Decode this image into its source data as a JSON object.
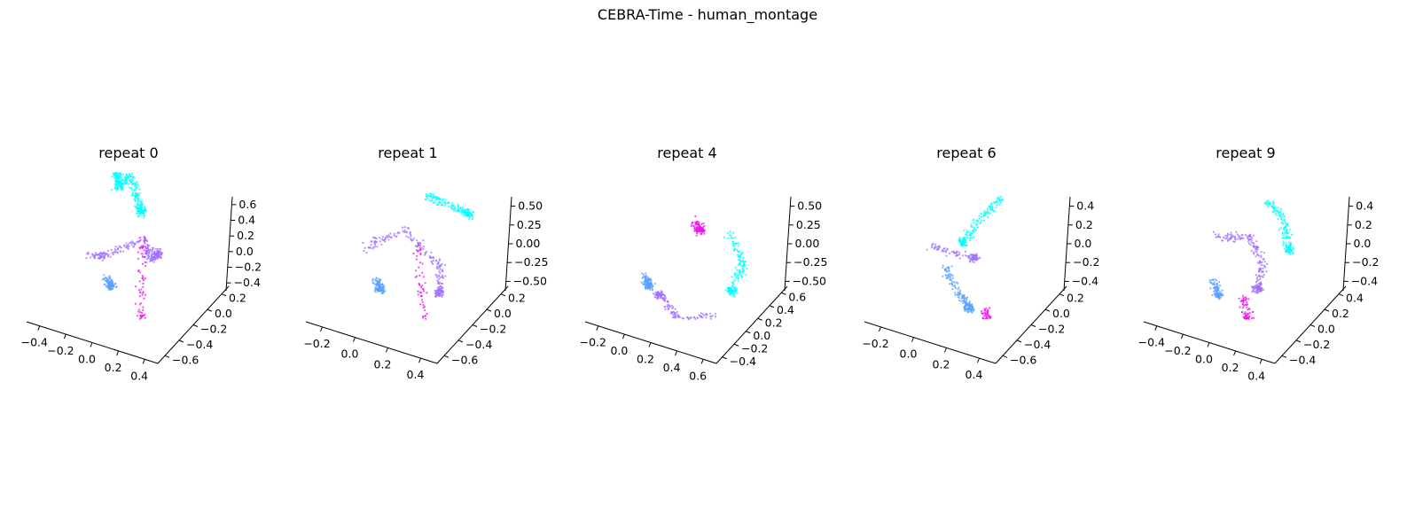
{
  "figure": {
    "title": "CEBRA-Time - human_montage"
  },
  "colors": {
    "cyan": "#00ffff",
    "blue": "#5aa0ff",
    "purple": "#a070ff",
    "magenta": "#f010f0",
    "axis": "#000000"
  },
  "chart_data": [
    {
      "type": "scatter",
      "title": "repeat 0",
      "x_ticks": [
        "−0.4",
        "−0.2",
        "0.0",
        "0.2",
        "0.4"
      ],
      "y_ticks": [
        "−0.6",
        "−0.4",
        "−0.2",
        "0.0",
        "0.2"
      ],
      "z_ticks": [
        "−0.4",
        "−0.2",
        "0.0",
        "0.2",
        "0.4",
        "0.6"
      ],
      "clusters": [
        {
          "color": "cyan",
          "points": [
            [
              -0.15,
              0.25,
              0.62
            ],
            [
              -0.12,
              0.28,
              0.55
            ],
            [
              -0.1,
              0.2,
              0.5
            ],
            [
              -0.05,
              0.3,
              0.58
            ],
            [
              0.05,
              0.2,
              0.45
            ],
            [
              0.1,
              0.15,
              0.35
            ]
          ]
        },
        {
          "color": "purple",
          "points": [
            [
              -0.25,
              0.05,
              -0.05
            ],
            [
              -0.1,
              0.0,
              0.0
            ],
            [
              0.15,
              0.1,
              0.15
            ],
            [
              0.2,
              0.05,
              0.0
            ],
            [
              0.25,
              0.1,
              0.05
            ]
          ]
        },
        {
          "color": "blue",
          "points": [
            [
              -0.05,
              -0.1,
              -0.15
            ],
            [
              0.0,
              -0.15,
              -0.2
            ]
          ]
        },
        {
          "color": "magenta",
          "points": [
            [
              0.15,
              0.05,
              0.15
            ],
            [
              0.2,
              -0.1,
              -0.4
            ],
            [
              0.3,
              -0.2,
              -0.55
            ]
          ]
        }
      ]
    },
    {
      "type": "scatter",
      "title": "repeat 1",
      "x_ticks": [
        "−0.2",
        "0.0",
        "0.2",
        "0.4"
      ],
      "y_ticks": [
        "−0.6",
        "−0.4",
        "−0.2",
        "0.0",
        "0.2"
      ],
      "z_ticks": [
        "−0.50",
        "−0.25",
        "0.00",
        "0.25",
        "0.50"
      ],
      "clusters": [
        {
          "color": "cyan",
          "points": [
            [
              0.1,
              0.25,
              0.45
            ],
            [
              0.25,
              0.3,
              0.4
            ],
            [
              0.4,
              0.3,
              0.35
            ]
          ]
        },
        {
          "color": "purple",
          "points": [
            [
              -0.3,
              0.1,
              0.0
            ],
            [
              0.0,
              0.1,
              0.2
            ],
            [
              0.3,
              0.0,
              0.0
            ],
            [
              0.35,
              -0.1,
              -0.2
            ]
          ]
        },
        {
          "color": "blue",
          "points": [
            [
              -0.15,
              -0.05,
              -0.2
            ],
            [
              -0.1,
              -0.1,
              -0.25
            ]
          ]
        },
        {
          "color": "magenta",
          "points": [
            [
              0.1,
              0.1,
              0.1
            ],
            [
              0.25,
              -0.15,
              -0.5
            ]
          ]
        }
      ]
    },
    {
      "type": "scatter",
      "title": "repeat 4",
      "x_ticks": [
        "−0.2",
        "0.0",
        "0.2",
        "0.4",
        "0.6"
      ],
      "y_ticks": [
        "−0.4",
        "−0.2",
        "0.0",
        "0.2",
        "0.4",
        "0.6"
      ],
      "z_ticks": [
        "−0.50",
        "−0.25",
        "0.00",
        "0.25",
        "0.50"
      ],
      "clusters": [
        {
          "color": "magenta",
          "points": [
            [
              0.05,
              0.2,
              0.25
            ],
            [
              0.1,
              0.15,
              0.2
            ]
          ]
        },
        {
          "color": "cyan",
          "points": [
            [
              0.3,
              0.2,
              0.2
            ],
            [
              0.45,
              0.1,
              0.0
            ],
            [
              0.4,
              0.0,
              -0.2
            ]
          ]
        },
        {
          "color": "purple",
          "points": [
            [
              0.3,
              -0.1,
              -0.4
            ],
            [
              0.1,
              -0.2,
              -0.45
            ],
            [
              -0.1,
              -0.1,
              -0.3
            ]
          ]
        },
        {
          "color": "blue",
          "points": [
            [
              -0.25,
              0.0,
              -0.2
            ],
            [
              -0.2,
              -0.05,
              -0.25
            ]
          ]
        }
      ]
    },
    {
      "type": "scatter",
      "title": "repeat 6",
      "x_ticks": [
        "−0.2",
        "0.0",
        "0.2",
        "0.4"
      ],
      "y_ticks": [
        "−0.6",
        "−0.4",
        "−0.2",
        "0.0",
        "0.2"
      ],
      "z_ticks": [
        "−0.4",
        "−0.2",
        "0.0",
        "0.2",
        "0.4"
      ],
      "clusters": [
        {
          "color": "cyan",
          "points": [
            [
              0.2,
              0.3,
              0.45
            ],
            [
              0.1,
              0.2,
              0.3
            ],
            [
              0.0,
              0.1,
              0.1
            ]
          ]
        },
        {
          "color": "blue",
          "points": [
            [
              -0.1,
              0.0,
              -0.1
            ],
            [
              0.05,
              -0.1,
              -0.25
            ],
            [
              0.15,
              -0.15,
              -0.35
            ]
          ]
        },
        {
          "color": "purple",
          "points": [
            [
              -0.2,
              0.0,
              0.05
            ],
            [
              0.1,
              0.05,
              0.0
            ]
          ]
        },
        {
          "color": "magenta",
          "points": [
            [
              0.25,
              -0.1,
              -0.35
            ],
            [
              0.3,
              -0.15,
              -0.45
            ]
          ]
        }
      ]
    },
    {
      "type": "scatter",
      "title": "repeat 9",
      "x_ticks": [
        "−0.4",
        "−0.2",
        "0.0",
        "0.2",
        "0.4"
      ],
      "y_ticks": [
        "−0.4",
        "−0.2",
        "0.0",
        "0.2",
        "0.4"
      ],
      "z_ticks": [
        "−0.4",
        "−0.2",
        "0.0",
        "0.2",
        "0.4"
      ],
      "clusters": [
        {
          "color": "cyan",
          "points": [
            [
              0.1,
              0.3,
              0.4
            ],
            [
              0.25,
              0.25,
              0.3
            ],
            [
              0.35,
              0.1,
              0.1
            ]
          ]
        },
        {
          "color": "purple",
          "points": [
            [
              -0.2,
              0.1,
              0.1
            ],
            [
              0.05,
              0.1,
              0.15
            ],
            [
              0.2,
              0.0,
              0.0
            ],
            [
              0.2,
              -0.1,
              -0.2
            ]
          ]
        },
        {
          "color": "blue",
          "points": [
            [
              -0.15,
              -0.05,
              -0.2
            ],
            [
              -0.1,
              -0.1,
              -0.3
            ]
          ]
        },
        {
          "color": "magenta",
          "points": [
            [
              0.1,
              -0.1,
              -0.3
            ],
            [
              0.15,
              -0.15,
              -0.45
            ]
          ]
        }
      ]
    }
  ]
}
